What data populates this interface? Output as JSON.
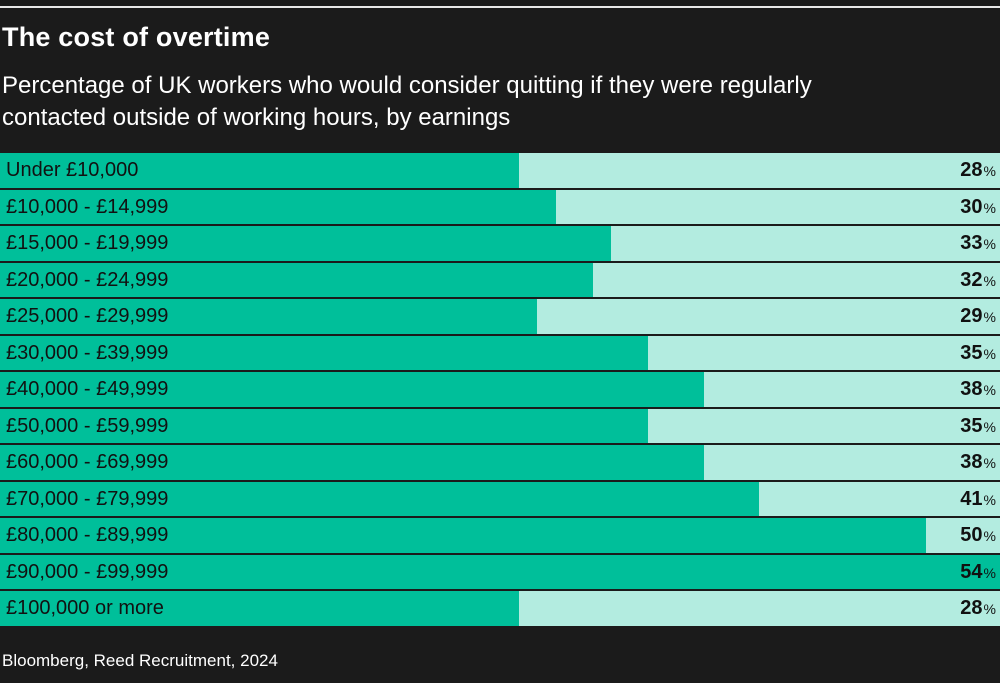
{
  "title": "The cost of overtime",
  "subtitle": "Percentage of UK workers who would consider quitting if they were regularly contacted outside of working hours, by earnings",
  "source": "Bloomberg, Reed Recruitment, 2024",
  "colors": {
    "background": "#1b1b1b",
    "bar": "#00bf9a",
    "track": "#b3ece0",
    "text_dark": "#111111"
  },
  "chart_data": {
    "type": "bar",
    "orientation": "horizontal",
    "title": "The cost of overtime",
    "subtitle": "Percentage of UK workers who would consider quitting if they were regularly contacted outside of working hours, by earnings",
    "categories": [
      "Under £10,000",
      "£10,000 - £14,999",
      "£15,000 - £19,999",
      "£20,000 - £24,999",
      "£25,000 - £29,999",
      "£30,000 - £39,999",
      "£40,000 - £49,999",
      "£50,000 - £59,999",
      "£60,000 - £69,999",
      "£70,000 - £79,999",
      "£80,000 - £89,999",
      "£90,000 - £99,999",
      "£100,000 or more"
    ],
    "values": [
      28,
      30,
      33,
      32,
      29,
      35,
      38,
      35,
      38,
      41,
      50,
      54,
      28
    ],
    "unit": "%",
    "xlim": [
      0,
      54
    ],
    "xlabel": "",
    "ylabel": "",
    "grid": false
  }
}
